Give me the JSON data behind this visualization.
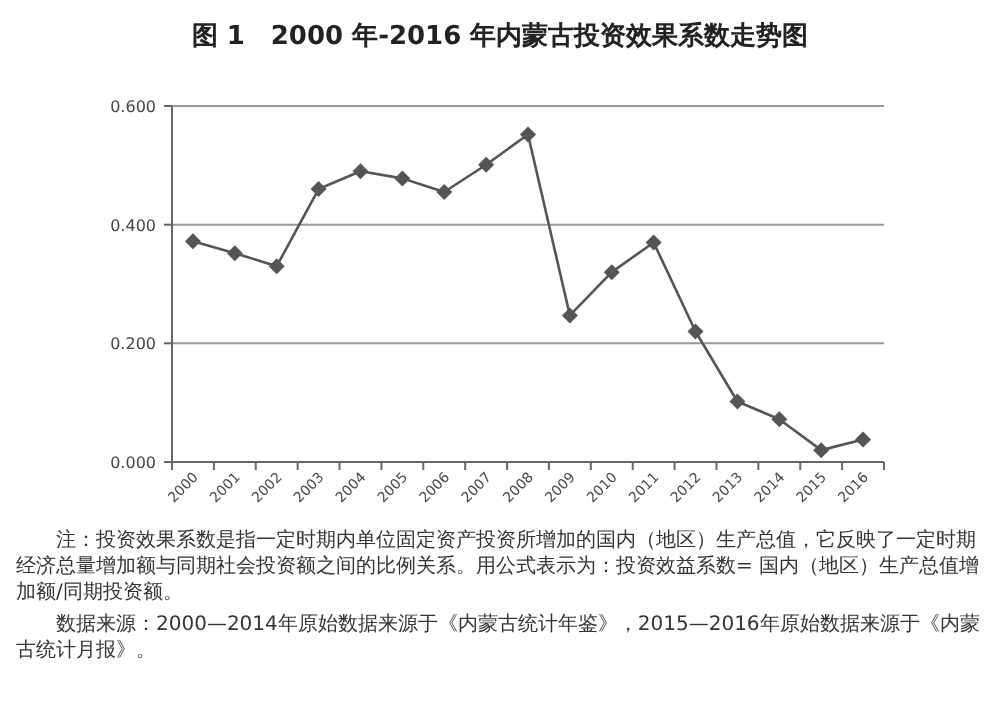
{
  "chart_data": {
    "type": "line",
    "title": "图 1　2000 年-2016 年内蒙古投资效果系数走势图",
    "categories": [
      "2000",
      "2001",
      "2002",
      "2003",
      "2004",
      "2005",
      "2006",
      "2007",
      "2008",
      "2009",
      "2010",
      "2011",
      "2012",
      "2013",
      "2014",
      "2015",
      "2016"
    ],
    "series": [
      {
        "color": "#555555",
        "values": [
          0.372,
          0.352,
          0.33,
          0.46,
          0.49,
          0.478,
          0.455,
          0.501,
          0.552,
          0.247,
          0.32,
          0.37,
          0.22,
          0.102,
          0.072,
          0.02,
          0.038
        ]
      }
    ],
    "ylim": [
      0,
      0.6
    ],
    "yticks": [
      {
        "value": 0,
        "label": "0.000"
      },
      {
        "value": 0.2,
        "label": "0.200"
      },
      {
        "value": 0.4,
        "label": "0.400"
      },
      {
        "value": 0.6,
        "label": "0.600"
      }
    ],
    "grid": "y",
    "marker": "diamond",
    "line_style": "solid",
    "annotations": [
      "注：投资效果系数是指一定时期内单位固定资产投资所增加的国内（地区）生产总值，它反映了一定时期经济总量增加额与同期社会投资额之间的比例关系。用公式表示为：投资效益系数= 国内（地区）生产总值增加额/同期投资额。",
      "数据来源：2000—2014年原始数据来源于《内蒙古统计年鉴》，2015—2016年原始数据来源于《内蒙古统计月报》。"
    ]
  }
}
